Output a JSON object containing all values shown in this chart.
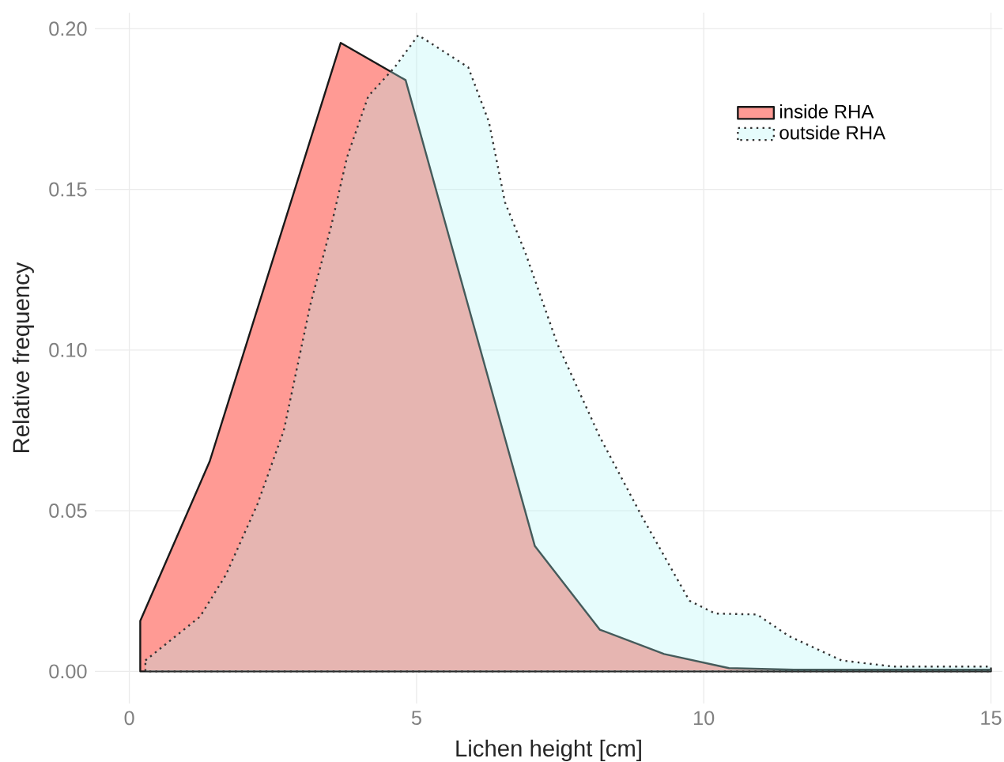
{
  "chart_data": {
    "type": "area",
    "xlabel": "Lichen height [cm]",
    "ylabel": "Relative frequency",
    "xlim": [
      -0.6,
      15.2
    ],
    "ylim": [
      -0.01,
      0.205
    ],
    "xticks": [
      0,
      5,
      10,
      15
    ],
    "yticks": [
      {
        "value": 0,
        "label": "0.00"
      },
      {
        "value": 0.05,
        "label": "0.05"
      },
      {
        "value": 0.1,
        "label": "0.10"
      },
      {
        "value": 0.15,
        "label": "0.15"
      },
      {
        "value": 0.2,
        "label": "0.20"
      }
    ],
    "grid": true,
    "legend": "top right",
    "series": [
      {
        "name": "inside RHA",
        "color": "#ff9a94",
        "line_style": "solid",
        "x": [
          0.19,
          1.4,
          3.68,
          4.81,
          7.06,
          8.19,
          9.31,
          10.44,
          11.57,
          15.0
        ],
        "values": [
          0.0157,
          0.0654,
          0.1956,
          0.184,
          0.039,
          0.013,
          0.0054,
          0.001,
          0.0005,
          0.0005
        ]
      },
      {
        "name": "outside RHA",
        "color": "#e6fcfc",
        "line_style": "dotted",
        "x": [
          0.28,
          1.23,
          1.68,
          2.23,
          2.69,
          3.15,
          3.52,
          3.79,
          4.16,
          4.62,
          5.03,
          5.9,
          6.26,
          6.54,
          6.9,
          7.45,
          8.19,
          8.93,
          9.75,
          10.2,
          10.93,
          11.48,
          12.4,
          13.3,
          15.0
        ],
        "values": [
          0.0034,
          0.017,
          0.03,
          0.052,
          0.075,
          0.114,
          0.139,
          0.16,
          0.179,
          0.188,
          0.198,
          0.188,
          0.171,
          0.146,
          0.13,
          0.102,
          0.073,
          0.048,
          0.022,
          0.018,
          0.0177,
          0.011,
          0.0034,
          0.0015,
          0.0015
        ]
      }
    ]
  }
}
